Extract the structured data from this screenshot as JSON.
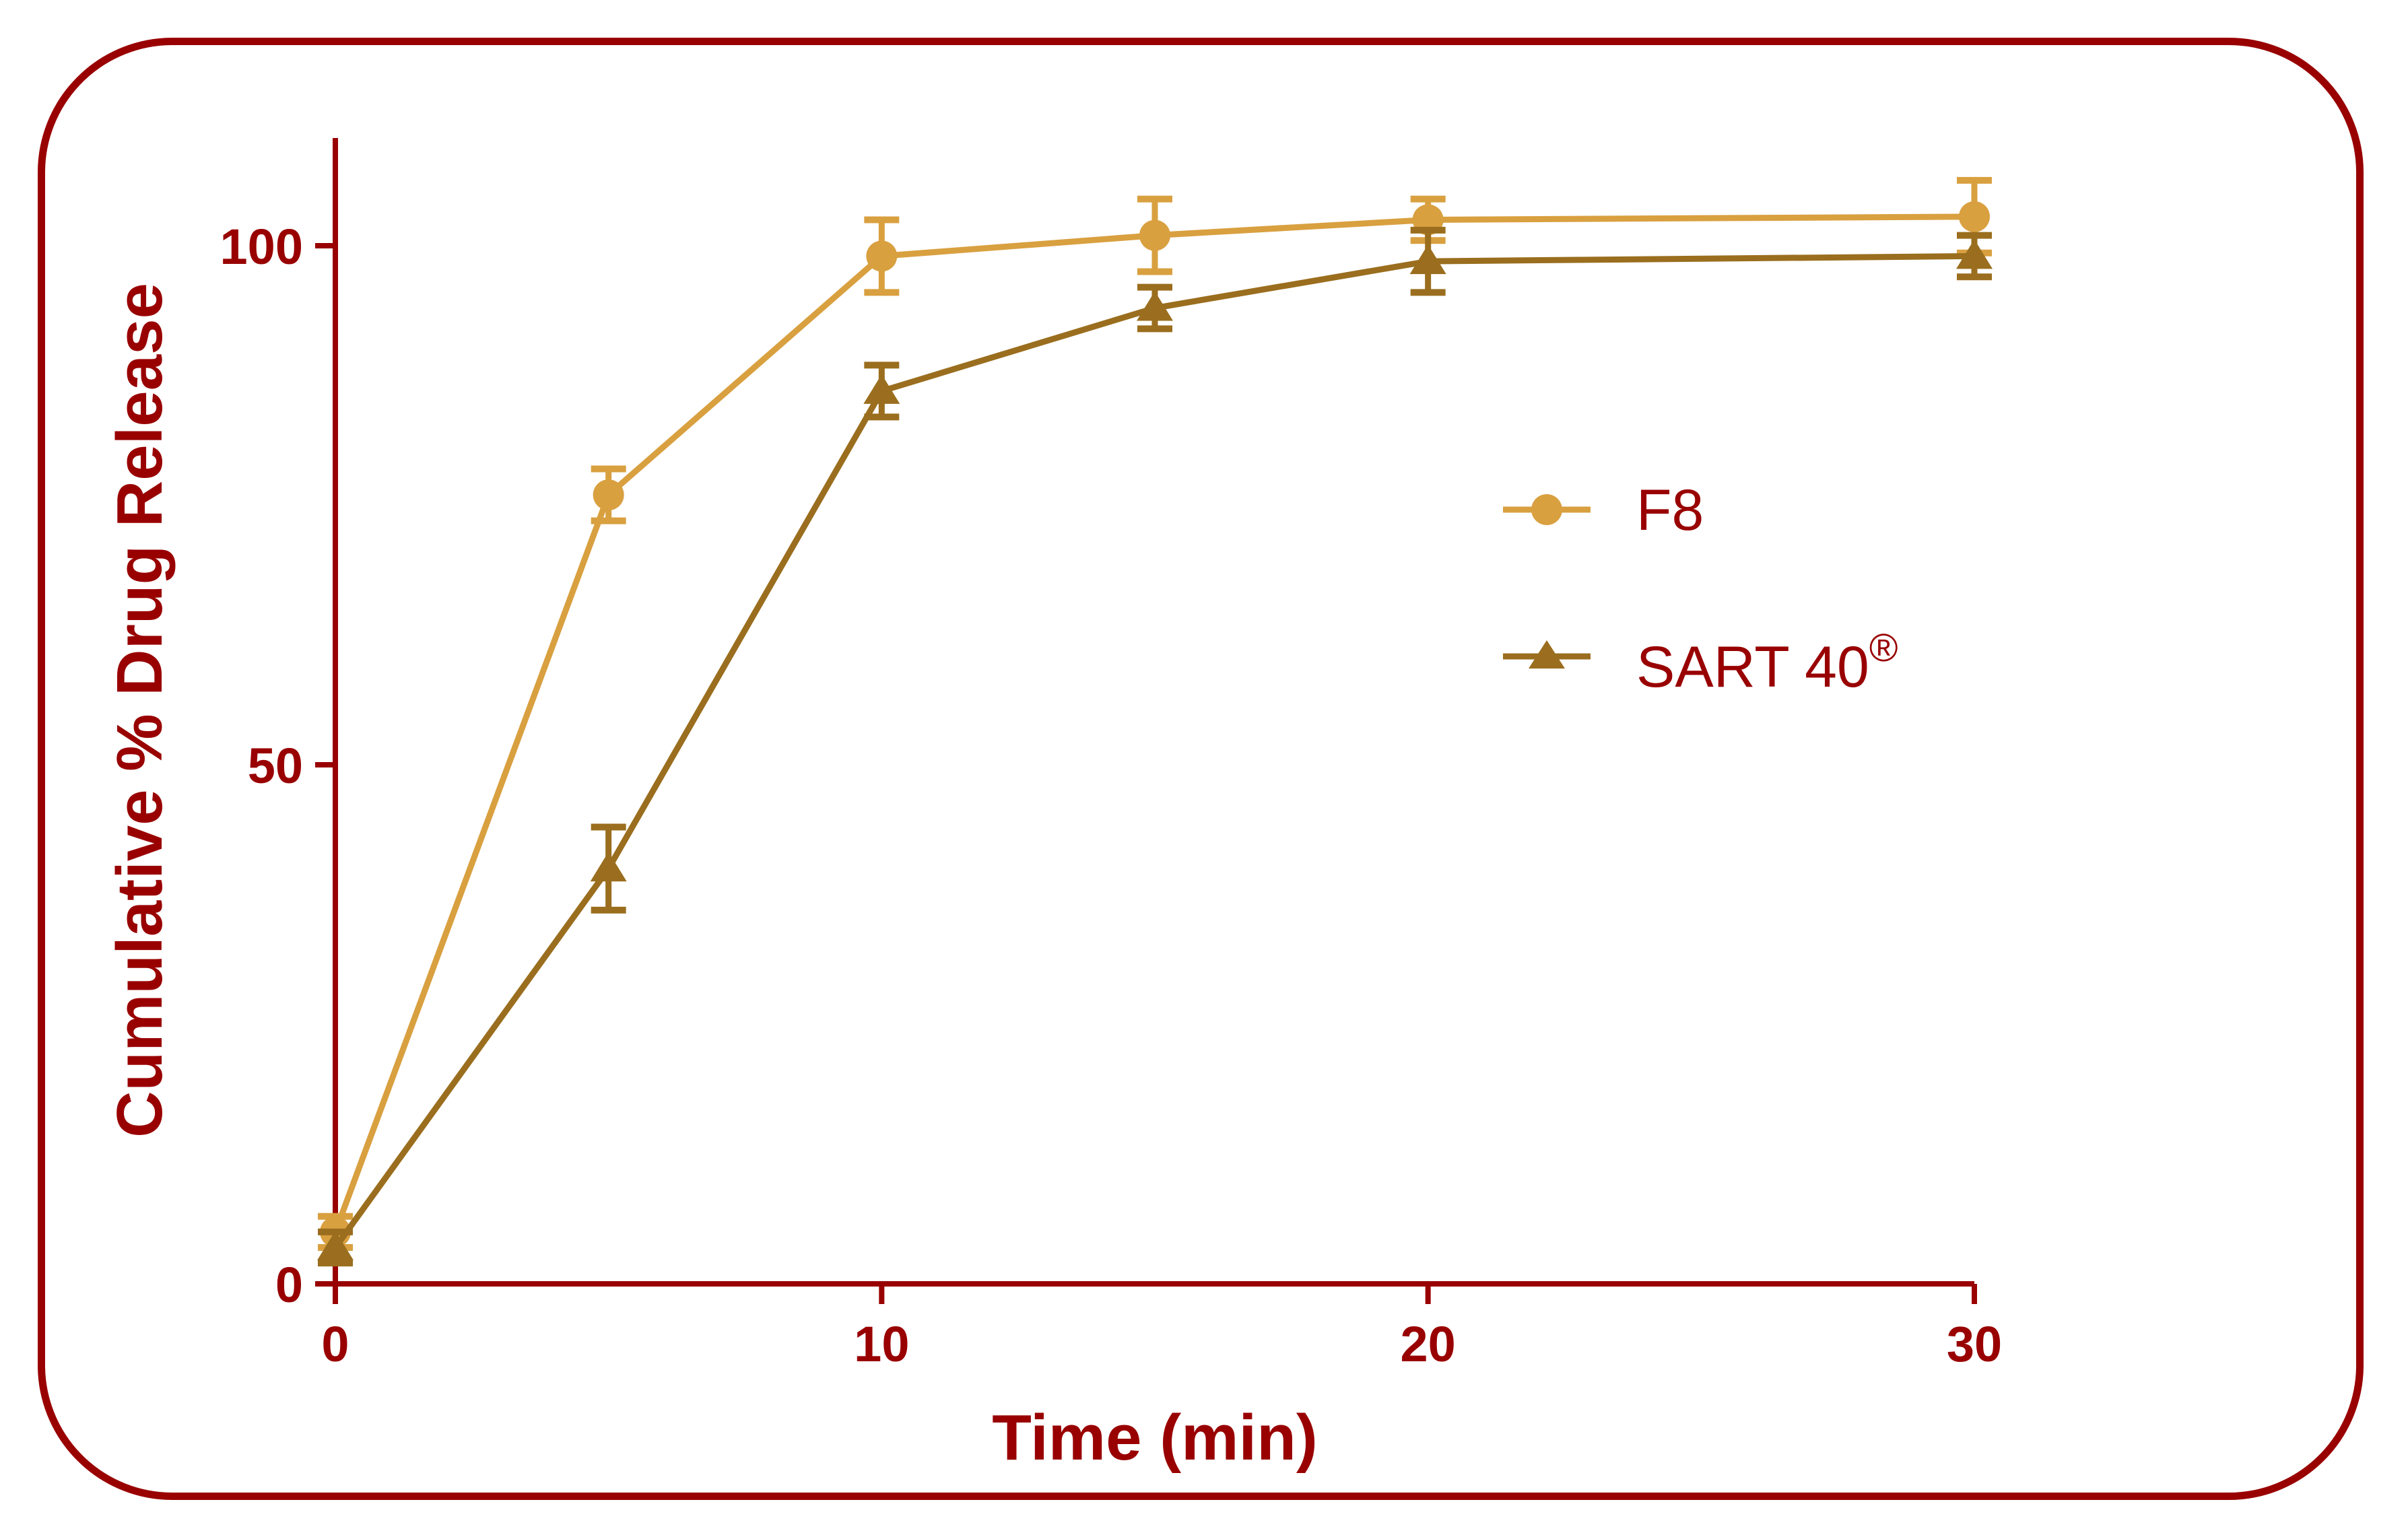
{
  "colors": {
    "frame": "#990000",
    "axis": "#990000",
    "text": "#990000",
    "f8": "#D9A040",
    "sart": "#9A6E1E"
  },
  "chart_data": {
    "type": "line",
    "xlabel": "Time (min)",
    "ylabel": "Cumulative % Drug Release",
    "xlim": [
      0,
      30
    ],
    "ylim": [
      0,
      110
    ],
    "xticks": [
      "0",
      "10",
      "20",
      "30"
    ],
    "yticks": [
      "0",
      "50",
      "100"
    ],
    "grid": false,
    "legend_position": "middle-right",
    "series": [
      {
        "name": "F8",
        "marker": "circle",
        "color": "#D9A040",
        "x": [
          0,
          5,
          10,
          15,
          20,
          30
        ],
        "y": [
          5,
          76,
          99,
          101,
          102.5,
          102.8
        ],
        "error": [
          1.5,
          2.5,
          3.5,
          3.5,
          2.0,
          3.5
        ]
      },
      {
        "name": "SART 40®",
        "legend_base": "SART 40",
        "legend_sup": "®",
        "marker": "triangle",
        "color": "#9A6E1E",
        "x": [
          0,
          5,
          10,
          15,
          20,
          30
        ],
        "y": [
          3.5,
          40,
          86,
          94,
          98.5,
          99
        ],
        "error": [
          1.5,
          4.0,
          2.5,
          2.0,
          3.0,
          2.0
        ]
      }
    ]
  }
}
